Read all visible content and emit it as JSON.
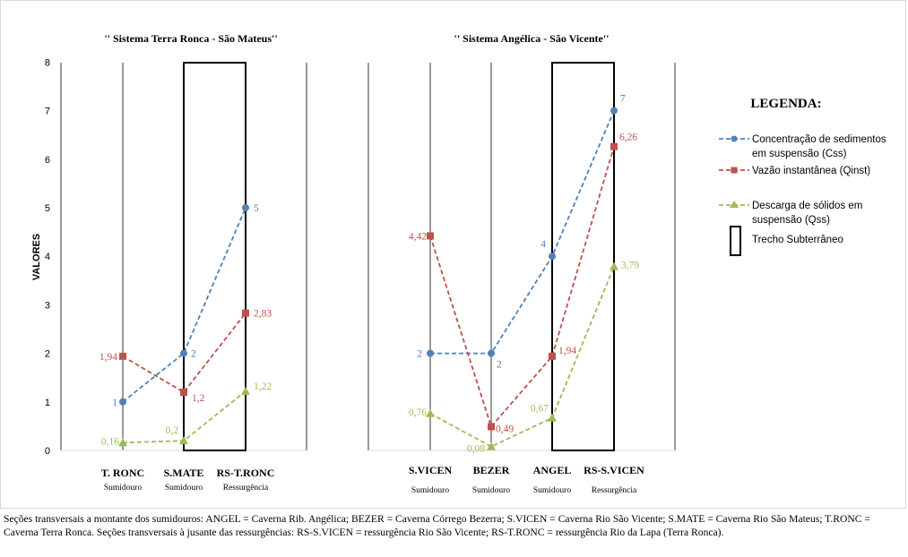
{
  "chart_data": {
    "type": "line",
    "ylabel": "VALORES",
    "ylim": [
      0,
      8
    ],
    "yticks": [
      "0",
      "1",
      "2",
      "3",
      "4",
      "5",
      "6",
      "7",
      "8"
    ],
    "panels": [
      {
        "title": "'' Sistema Terra Ronca  - São Mateus''",
        "categories": [
          "T. RONC",
          "S.MATE",
          "RS-T.RONC"
        ],
        "sublabels": [
          "Sumidouro",
          "Sumidouro",
          "Ressurgência"
        ],
        "underground": [
          "RS-T.RONC"
        ],
        "series": [
          {
            "name": "Concentração de sedimentos em suspensão (Css)",
            "values": [
              1,
              2,
              5
            ],
            "labels": [
              "1",
              "2",
              "5"
            ]
          },
          {
            "name": "Vazão instantânea (Qinst)",
            "values": [
              1.94,
              1.2,
              2.83
            ],
            "labels": [
              "1,94",
              "1,2",
              "2,83"
            ]
          },
          {
            "name": "Descarga de sólidos em suspensão (Qss)",
            "values": [
              0.16,
              0.2,
              1.22
            ],
            "labels": [
              "0,16",
              "0,2",
              "1,22"
            ]
          }
        ]
      },
      {
        "title": "'' Sistema Angélica - São Vicente''",
        "categories": [
          "S.VICEN",
          "BEZER",
          "ANGEL",
          "RS-S.VICEN"
        ],
        "sublabels": [
          "Sumidouro",
          "Sumidouro",
          "Sumidouro",
          "Ressurgência"
        ],
        "underground": [
          "RS-S.VICEN"
        ],
        "series": [
          {
            "name": "Concentração de sedimentos em suspensão (Css)",
            "values": [
              2,
              2,
              4,
              7
            ],
            "labels": [
              "2",
              "2",
              "4",
              "7"
            ]
          },
          {
            "name": "Vazão instantânea (Qinst)",
            "values": [
              4.42,
              0.49,
              1.94,
              6.26
            ],
            "labels": [
              "4,42",
              "0,49",
              "1,94",
              "6,26"
            ]
          },
          {
            "name": "Descarga de sólidos em suspensão (Qss)",
            "values": [
              0.76,
              0.08,
              0.67,
              3.79
            ],
            "labels": [
              "0,76",
              "0,08",
              "0,67",
              "3,79"
            ]
          }
        ]
      }
    ],
    "series_colors": [
      "#4f81bd",
      "#c0504d",
      "#9bbb59"
    ],
    "series_markers": [
      "circle",
      "square",
      "triangle"
    ],
    "legend": {
      "title": "LEGENDA:",
      "placement": "right",
      "entries": [
        {
          "lines": [
            "Concentração de sedimentos",
            "em suspensão (Css)"
          ]
        },
        {
          "lines": [
            "Vazão instantânea (Qinst)"
          ]
        },
        {
          "lines": [
            "Descarga de sólidos em",
            "suspensão (Qss)"
          ]
        },
        {
          "lines": [
            "Trecho Subterrâneo"
          ]
        }
      ]
    }
  },
  "caption": "Seções transversais a montante dos sumidouros: ANGEL = Caverna Rib. Angélica; BEZER = Caverna Córrego Bezerra; S.VICEN = Caverna Rio São Vicente; S.MATE = Caverna Rio São Mateus; T.RONC = Caverna Terra Ronca. Seções transversais à jusante das ressurgências: RS-S.VICEN = ressurgência Rio São Vicente; RS-T.RONC = ressurgência Rio da Lapa (Terra Ronca)."
}
